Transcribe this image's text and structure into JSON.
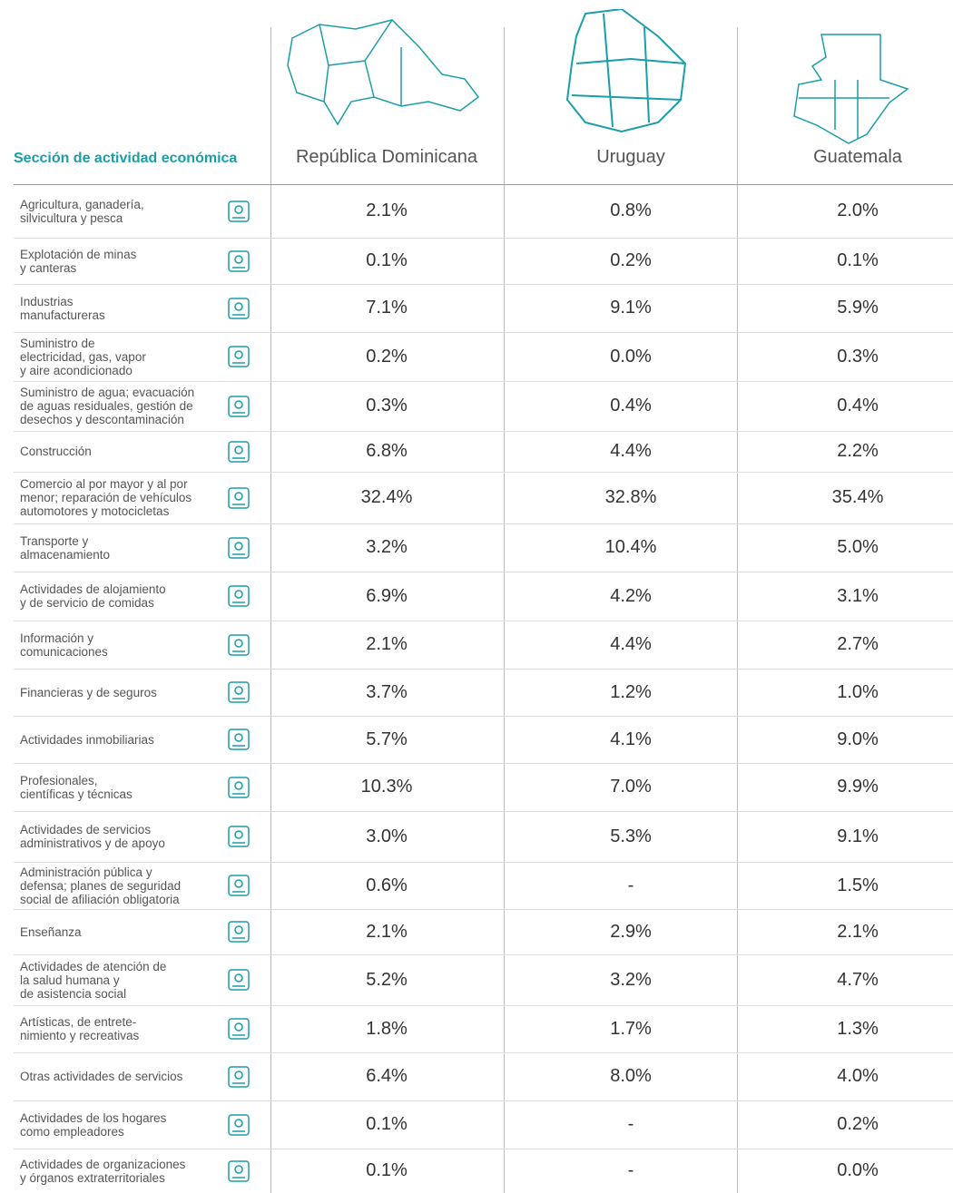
{
  "table": {
    "header": [
      "Sección de actividad económica",
      "República Dominicana",
      "Uruguay",
      "Guatemala"
    ],
    "rows": [
      [
        "Agricultura, ganadería,\nsilvicultura y pesca",
        "2.1%",
        "0.8%",
        "2.0%"
      ],
      [
        "Explotación de minas\ny canteras",
        "0.1%",
        "0.2%",
        "0.1%"
      ],
      [
        "Industrias\nmanufactureras",
        "7.1%",
        "9.1%",
        "5.9%"
      ],
      [
        "Suministro de\nelectricidad, gas, vapor\ny aire acondicionado",
        "0.2%",
        "0.0%",
        "0.3%"
      ],
      [
        "Suministro de agua; evacuación\nde aguas residuales, gestión de\ndesechos y descontaminación",
        "0.3%",
        "0.4%",
        "0.4%"
      ],
      [
        "Construcción",
        "6.8%",
        "4.4%",
        "2.2%"
      ],
      [
        "Comercio al por mayor y al por\nmenor; reparación de vehículos\nautomotores y motocicletas",
        "32.4%",
        "32.8%",
        "35.4%"
      ],
      [
        "Transporte y\nalmacenamiento",
        "3.2%",
        "10.4%",
        "5.0%"
      ],
      [
        "Actividades de alojamiento\ny de servicio de comidas",
        "6.9%",
        "4.2%",
        "3.1%"
      ],
      [
        "Información y\ncomunicaciones",
        "2.1%",
        "4.4%",
        "2.7%"
      ],
      [
        "Financieras y de seguros",
        "3.7%",
        "1.2%",
        "1.0%"
      ],
      [
        "Actividades inmobiliarias",
        "5.7%",
        "4.1%",
        "9.0%"
      ],
      [
        "Profesionales,\ncientíficas y técnicas",
        "10.3%",
        "7.0%",
        "9.9%"
      ],
      [
        "Actividades de servicios\nadministrativos y de apoyo",
        "3.0%",
        "5.3%",
        "9.1%"
      ],
      [
        "Administración pública y\ndefensa; planes de seguridad\nsocial de afiliación obligatoria",
        "0.6%",
        "-",
        "1.5%"
      ],
      [
        "Enseñanza",
        "2.1%",
        "2.9%",
        "2.1%"
      ],
      [
        "Actividades de atención de\nla salud humana y\nde asistencia social",
        "5.2%",
        "3.2%",
        "4.7%"
      ],
      [
        "Artísticas, de entrete-\nnimiento y recreativas",
        "1.8%",
        "1.7%",
        "1.3%"
      ],
      [
        "Otras actividades de servicios",
        "6.4%",
        "8.0%",
        "4.0%"
      ],
      [
        "Actividades de los hogares\ncomo empleadores",
        "0.1%",
        "-",
        "0.2%"
      ],
      [
        "Actividades de organizaciones\ny órganos extraterritoriales",
        "0.1%",
        "-",
        "0.0%"
      ]
    ]
  }
}
